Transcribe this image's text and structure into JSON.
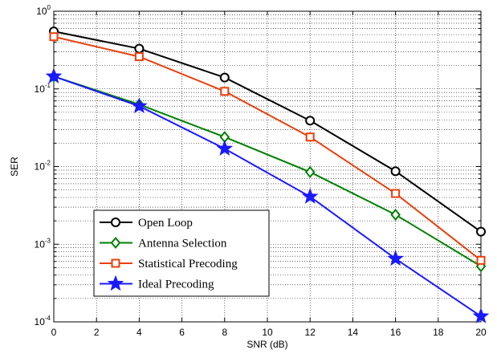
{
  "chart_data": {
    "type": "line",
    "title": "",
    "xlabel": "SNR (dB)",
    "ylabel": "SER",
    "xlim": [
      0,
      20
    ],
    "ylim": [
      0.0001,
      1
    ],
    "y_scale": "log",
    "x_ticks": [
      0,
      2,
      4,
      6,
      8,
      10,
      12,
      14,
      16,
      18,
      20
    ],
    "y_ticks": [
      {
        "value": 1,
        "base": "10",
        "exp": "0"
      },
      {
        "value": 0.1,
        "base": "10",
        "exp": "-1"
      },
      {
        "value": 0.01,
        "base": "10",
        "exp": "-2"
      },
      {
        "value": 0.001,
        "base": "10",
        "exp": "-3"
      },
      {
        "value": 0.0001,
        "base": "10",
        "exp": "-4"
      }
    ],
    "grid": true,
    "legend_position": "bottom-left",
    "x": [
      0,
      4,
      8,
      12,
      16,
      20
    ],
    "series": [
      {
        "name": "Open Loop",
        "color": "#000000",
        "marker": "circle",
        "values": [
          0.55,
          0.33,
          0.14,
          0.039,
          0.0087,
          0.00145
        ]
      },
      {
        "name": "Antenna Selection",
        "color": "#008000",
        "marker": "diamond",
        "values": [
          0.145,
          0.063,
          0.024,
          0.0085,
          0.0024,
          0.00052
        ]
      },
      {
        "name": "Statistical Precoding",
        "color": "#e8400c",
        "marker": "square",
        "values": [
          0.47,
          0.26,
          0.093,
          0.024,
          0.0045,
          0.00062
        ]
      },
      {
        "name": "Ideal Precoding",
        "color": "#1a1aff",
        "marker": "star",
        "values": [
          0.145,
          0.06,
          0.017,
          0.0041,
          0.00065,
          0.000118
        ]
      }
    ]
  }
}
